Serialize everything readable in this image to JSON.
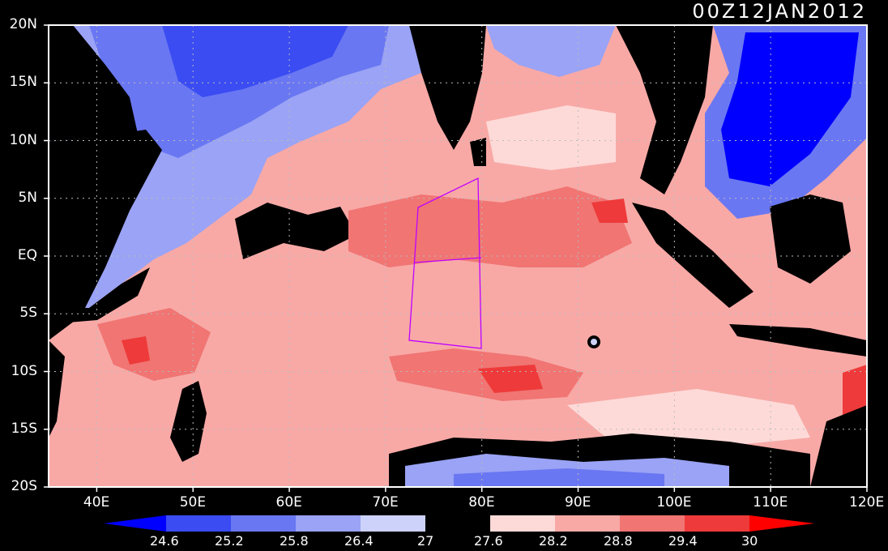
{
  "title": "00Z12JAN2012",
  "map": {
    "lon_range": [
      35,
      120
    ],
    "lat_range": [
      -20,
      20
    ],
    "lon_labels": [
      "40E",
      "50E",
      "60E",
      "70E",
      "80E",
      "90E",
      "100E",
      "110E",
      "120E"
    ],
    "lat_labels": [
      "20N",
      "15N",
      "10N",
      "5N",
      "EQ",
      "5S",
      "10S",
      "15S",
      "20S"
    ],
    "grid": "dotted",
    "land_color": "#000000",
    "coast_color": "#c040ff",
    "box_color": "#c000ff"
  },
  "colorbar": {
    "levels": [
      "24.6",
      "25.2",
      "25.8",
      "26.4",
      "27",
      "27.6",
      "28.2",
      "28.8",
      "29.4",
      "30"
    ],
    "colors": [
      "#0000ff",
      "#3a4cf2",
      "#6a77f2",
      "#9aa3f5",
      "#cdd2fa",
      "#000000",
      "#fddad8",
      "#f8a9a6",
      "#f07573",
      "#ee3a3a",
      "#ff0000"
    ]
  }
}
